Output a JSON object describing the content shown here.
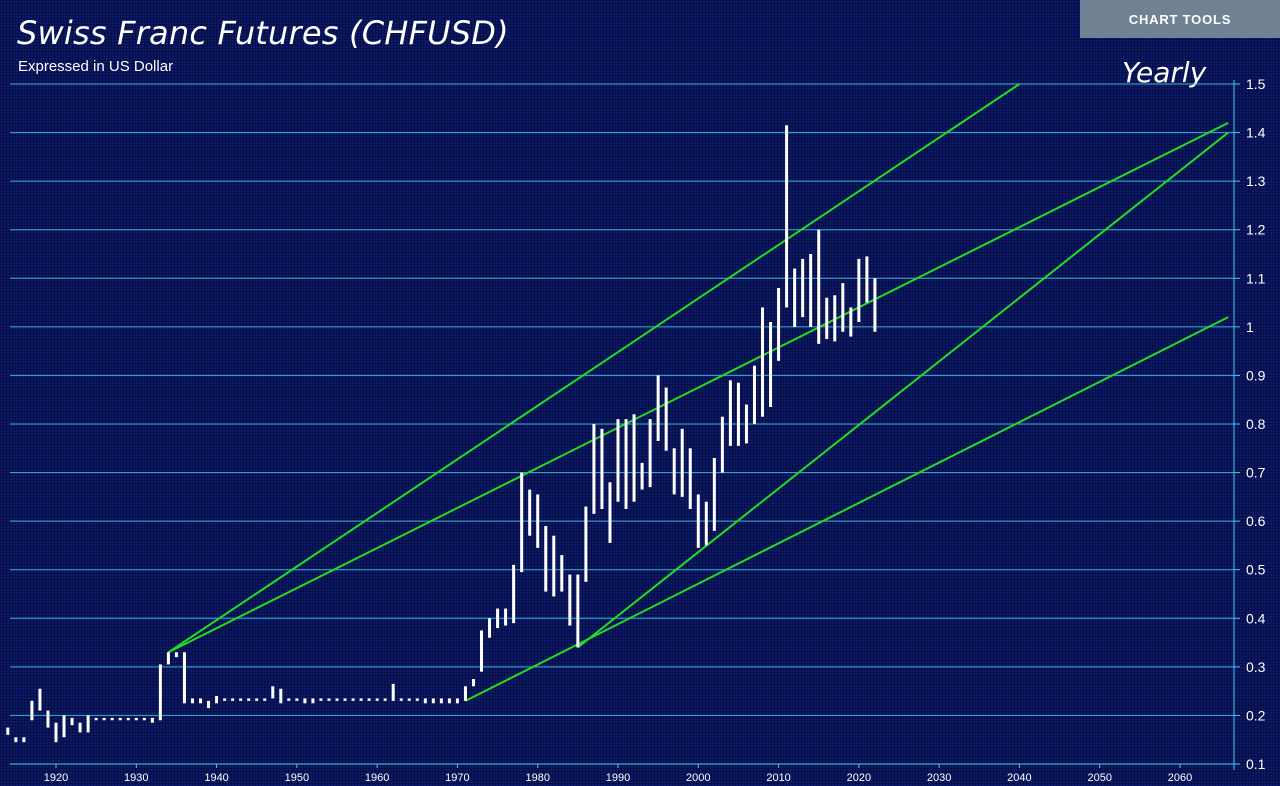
{
  "header": {
    "title": "Swiss Franc Futures (CHFUSD)",
    "subtitle": "Expressed in US Dollar",
    "period": "Yearly",
    "chart_tools_label": "CHART TOOLS"
  },
  "colors": {
    "background": "#0b1a6e",
    "gridline": "#3fd0ee",
    "bars": "#ffffff",
    "trendlines": "#22dd22",
    "button": "#6f8192"
  },
  "chart_data": {
    "type": "bar",
    "bar_style": "yearly-high-low-range",
    "title": "Swiss Franc Futures (CHFUSD)",
    "subtitle": "Expressed in US Dollar",
    "xlabel": "",
    "ylabel": "",
    "xlim": [
      1914,
      2067
    ],
    "ylim": [
      0.1,
      1.5
    ],
    "x_ticks": [
      "1920",
      "1930",
      "1940",
      "1950",
      "1960",
      "1970",
      "1980",
      "1990",
      "2000",
      "2010",
      "2020",
      "2030",
      "2040",
      "2050",
      "2060"
    ],
    "y_ticks": [
      "0.1",
      "0.2",
      "0.3",
      "0.4",
      "0.5",
      "0.6",
      "0.7",
      "0.8",
      "0.9",
      "1",
      "1.1",
      "1.2",
      "1.3",
      "1.4",
      "1.5"
    ],
    "grid": true,
    "y_axis_position": "right",
    "series": [
      {
        "type": "high-low",
        "x": [
          1914,
          1915,
          1916,
          1917,
          1918,
          1919,
          1920,
          1921,
          1922,
          1923,
          1924,
          1925,
          1926,
          1927,
          1928,
          1929,
          1930,
          1931,
          1932,
          1933,
          1934,
          1935,
          1936,
          1937,
          1938,
          1939,
          1940,
          1941,
          1942,
          1943,
          1944,
          1945,
          1946,
          1947,
          1948,
          1949,
          1950,
          1951,
          1952,
          1953,
          1954,
          1955,
          1956,
          1957,
          1958,
          1959,
          1960,
          1961,
          1962,
          1963,
          1964,
          1965,
          1966,
          1967,
          1968,
          1969,
          1970,
          1971,
          1972,
          1973,
          1974,
          1975,
          1976,
          1977,
          1978,
          1979,
          1980,
          1981,
          1982,
          1983,
          1984,
          1985,
          1986,
          1987,
          1988,
          1989,
          1990,
          1991,
          1992,
          1993,
          1994,
          1995,
          1996,
          1997,
          1998,
          1999,
          2000,
          2001,
          2002,
          2003,
          2004,
          2005,
          2006,
          2007,
          2008,
          2009,
          2010,
          2011,
          2012,
          2013,
          2014,
          2015,
          2016,
          2017,
          2018,
          2019,
          2020,
          2021,
          2022
        ],
        "high": [
          0.175,
          0.155,
          0.155,
          0.23,
          0.255,
          0.21,
          0.185,
          0.2,
          0.195,
          0.185,
          0.2,
          0.195,
          0.195,
          0.195,
          0.195,
          0.195,
          0.195,
          0.195,
          0.195,
          0.305,
          0.33,
          0.33,
          0.33,
          0.235,
          0.235,
          0.23,
          0.24,
          0.235,
          0.235,
          0.235,
          0.235,
          0.235,
          0.235,
          0.26,
          0.255,
          0.235,
          0.235,
          0.235,
          0.235,
          0.235,
          0.235,
          0.235,
          0.235,
          0.235,
          0.235,
          0.235,
          0.235,
          0.235,
          0.265,
          0.235,
          0.235,
          0.235,
          0.235,
          0.235,
          0.235,
          0.235,
          0.235,
          0.26,
          0.275,
          0.375,
          0.4,
          0.42,
          0.42,
          0.51,
          0.7,
          0.665,
          0.655,
          0.59,
          0.57,
          0.53,
          0.49,
          0.49,
          0.63,
          0.8,
          0.79,
          0.68,
          0.81,
          0.81,
          0.82,
          0.72,
          0.81,
          0.9,
          0.875,
          0.75,
          0.79,
          0.75,
          0.655,
          0.64,
          0.73,
          0.815,
          0.89,
          0.885,
          0.84,
          0.92,
          1.04,
          1.01,
          1.08,
          1.415,
          1.12,
          1.14,
          1.15,
          1.2,
          1.06,
          1.065,
          1.09,
          1.04,
          1.14,
          1.145,
          1.1
        ],
        "low": [
          0.16,
          0.145,
          0.145,
          0.19,
          0.21,
          0.175,
          0.145,
          0.155,
          0.18,
          0.165,
          0.165,
          0.19,
          0.19,
          0.19,
          0.19,
          0.19,
          0.19,
          0.19,
          0.185,
          0.19,
          0.305,
          0.32,
          0.225,
          0.225,
          0.225,
          0.215,
          0.225,
          0.23,
          0.23,
          0.23,
          0.23,
          0.23,
          0.23,
          0.235,
          0.225,
          0.23,
          0.23,
          0.225,
          0.225,
          0.23,
          0.23,
          0.23,
          0.23,
          0.23,
          0.23,
          0.23,
          0.23,
          0.23,
          0.23,
          0.23,
          0.23,
          0.23,
          0.225,
          0.225,
          0.225,
          0.225,
          0.225,
          0.23,
          0.26,
          0.29,
          0.36,
          0.38,
          0.385,
          0.39,
          0.495,
          0.57,
          0.545,
          0.455,
          0.445,
          0.455,
          0.385,
          0.34,
          0.475,
          0.615,
          0.625,
          0.555,
          0.64,
          0.625,
          0.64,
          0.665,
          0.67,
          0.765,
          0.745,
          0.655,
          0.65,
          0.625,
          0.545,
          0.55,
          0.58,
          0.7,
          0.755,
          0.755,
          0.76,
          0.8,
          0.815,
          0.835,
          0.93,
          1.04,
          1.0,
          1.02,
          1.0,
          0.965,
          0.975,
          0.97,
          0.99,
          0.98,
          1.01,
          1.05,
          0.99
        ]
      }
    ],
    "trendlines": [
      {
        "x": [
          1934,
          2040
        ],
        "y": [
          0.33,
          1.5
        ]
      },
      {
        "x": [
          1934,
          2066
        ],
        "y": [
          0.33,
          1.42
        ]
      },
      {
        "x": [
          1985,
          2066
        ],
        "y": [
          0.34,
          1.4
        ]
      },
      {
        "x": [
          1971,
          2066
        ],
        "y": [
          0.23,
          1.02
        ]
      }
    ]
  }
}
